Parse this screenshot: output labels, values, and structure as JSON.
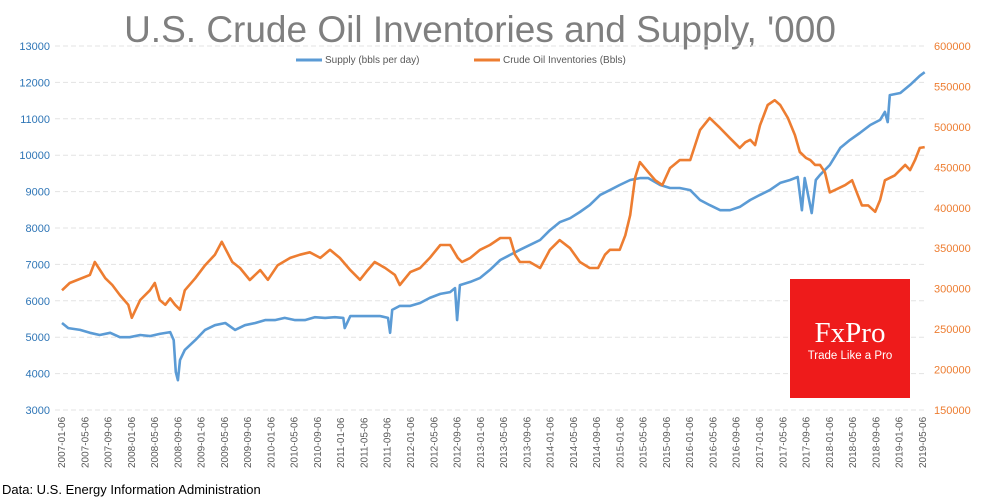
{
  "chart_data": {
    "type": "line",
    "title": "U.S. Crude Oil Inventories and Supply, '000",
    "source": "Data: U.S. Energy Information Administration",
    "x_unit": "year (decimal)",
    "xlim": [
      2007.0,
      2019.36
    ],
    "x_tick_labels": [
      "2007-01-06",
      "2007-05-06",
      "2007-09-06",
      "2008-01-06",
      "2008-05-06",
      "2008-09-06",
      "2009-01-06",
      "2009-05-06",
      "2009-09-06",
      "2010-01-06",
      "2010-05-06",
      "2010-09-06",
      "2011-01-06",
      "2011-05-06",
      "2011-09-06",
      "2012-01-06",
      "2012-05-06",
      "2012-09-06",
      "2013-01-06",
      "2013-05-06",
      "2013-09-06",
      "2014-01-06",
      "2014-05-06",
      "2014-09-06",
      "2015-01-06",
      "2015-05-06",
      "2015-09-06",
      "2016-01-06",
      "2016-05-06",
      "2016-09-06",
      "2017-01-06",
      "2017-05-06",
      "2017-09-06",
      "2018-01-06",
      "2018-05-06",
      "2018-09-06",
      "2019-01-06",
      "2019-05-06"
    ],
    "left_axis": {
      "ylim": [
        3000,
        13000
      ],
      "ticks": [
        "3000",
        "4000",
        "5000",
        "6000",
        "7000",
        "8000",
        "9000",
        "10000",
        "11000",
        "12000",
        "13000"
      ]
    },
    "right_axis": {
      "ylim": [
        150000,
        600000
      ],
      "ticks": [
        "150000",
        "200000",
        "250000",
        "300000",
        "350000",
        "400000",
        "450000",
        "500000",
        "550000",
        "600000"
      ]
    },
    "grid": true,
    "legend_position": "top-center",
    "series": [
      {
        "name": "Supply (bbls per day)",
        "axis": "left",
        "color": "#5b9bd5",
        "points": [
          [
            2007.0,
            5390
          ],
          [
            2007.09,
            5250
          ],
          [
            2007.26,
            5200
          ],
          [
            2007.4,
            5120
          ],
          [
            2007.54,
            5060
          ],
          [
            2007.69,
            5120
          ],
          [
            2007.83,
            5000
          ],
          [
            2007.97,
            5000
          ],
          [
            2008.12,
            5060
          ],
          [
            2008.26,
            5030
          ],
          [
            2008.4,
            5090
          ],
          [
            2008.55,
            5140
          ],
          [
            2008.6,
            4920
          ],
          [
            2008.63,
            4040
          ],
          [
            2008.66,
            3820
          ],
          [
            2008.69,
            4370
          ],
          [
            2008.76,
            4650
          ],
          [
            2008.91,
            4920
          ],
          [
            2009.05,
            5200
          ],
          [
            2009.19,
            5330
          ],
          [
            2009.34,
            5390
          ],
          [
            2009.48,
            5200
          ],
          [
            2009.62,
            5330
          ],
          [
            2009.77,
            5390
          ],
          [
            2009.91,
            5470
          ],
          [
            2010.05,
            5470
          ],
          [
            2010.19,
            5530
          ],
          [
            2010.34,
            5470
          ],
          [
            2010.48,
            5470
          ],
          [
            2010.62,
            5550
          ],
          [
            2010.77,
            5530
          ],
          [
            2010.91,
            5550
          ],
          [
            2011.03,
            5530
          ],
          [
            2011.05,
            5250
          ],
          [
            2011.13,
            5580
          ],
          [
            2011.27,
            5580
          ],
          [
            2011.41,
            5580
          ],
          [
            2011.56,
            5580
          ],
          [
            2011.67,
            5530
          ],
          [
            2011.7,
            5120
          ],
          [
            2011.73,
            5750
          ],
          [
            2011.84,
            5860
          ],
          [
            2011.99,
            5860
          ],
          [
            2012.13,
            5940
          ],
          [
            2012.27,
            6080
          ],
          [
            2012.42,
            6190
          ],
          [
            2012.56,
            6240
          ],
          [
            2012.63,
            6350
          ],
          [
            2012.66,
            5470
          ],
          [
            2012.7,
            6430
          ],
          [
            2012.85,
            6520
          ],
          [
            2012.99,
            6630
          ],
          [
            2013.13,
            6850
          ],
          [
            2013.28,
            7120
          ],
          [
            2013.42,
            7260
          ],
          [
            2013.56,
            7400
          ],
          [
            2013.7,
            7530
          ],
          [
            2013.85,
            7670
          ],
          [
            2013.99,
            7940
          ],
          [
            2014.13,
            8160
          ],
          [
            2014.28,
            8270
          ],
          [
            2014.42,
            8440
          ],
          [
            2014.56,
            8630
          ],
          [
            2014.71,
            8910
          ],
          [
            2014.85,
            9040
          ],
          [
            2014.99,
            9180
          ],
          [
            2015.14,
            9320
          ],
          [
            2015.28,
            9370
          ],
          [
            2015.4,
            9370
          ],
          [
            2015.57,
            9180
          ],
          [
            2015.71,
            9100
          ],
          [
            2015.85,
            9100
          ],
          [
            2016.0,
            9040
          ],
          [
            2016.14,
            8770
          ],
          [
            2016.28,
            8630
          ],
          [
            2016.43,
            8490
          ],
          [
            2016.57,
            8490
          ],
          [
            2016.71,
            8580
          ],
          [
            2016.86,
            8770
          ],
          [
            2017.0,
            8910
          ],
          [
            2017.14,
            9040
          ],
          [
            2017.29,
            9240
          ],
          [
            2017.43,
            9320
          ],
          [
            2017.54,
            9400
          ],
          [
            2017.6,
            8490
          ],
          [
            2017.64,
            9370
          ],
          [
            2017.74,
            8410
          ],
          [
            2017.8,
            9320
          ],
          [
            2017.86,
            9460
          ],
          [
            2018.0,
            9730
          ],
          [
            2018.15,
            10200
          ],
          [
            2018.29,
            10420
          ],
          [
            2018.43,
            10610
          ],
          [
            2018.58,
            10830
          ],
          [
            2018.72,
            10970
          ],
          [
            2018.79,
            11190
          ],
          [
            2018.83,
            10910
          ],
          [
            2018.86,
            11650
          ],
          [
            2019.01,
            11710
          ],
          [
            2019.15,
            11930
          ],
          [
            2019.29,
            12180
          ],
          [
            2019.36,
            12280
          ]
        ]
      },
      {
        "name": "Crude Oil Inventories (Bbls)",
        "axis": "right",
        "color": "#ed7d31",
        "points": [
          [
            2007.0,
            298000
          ],
          [
            2007.11,
            307000
          ],
          [
            2007.4,
            317000
          ],
          [
            2007.47,
            333000
          ],
          [
            2007.62,
            313000
          ],
          [
            2007.72,
            304500
          ],
          [
            2007.83,
            292000
          ],
          [
            2007.95,
            280000
          ],
          [
            2008.0,
            264000
          ],
          [
            2008.12,
            286000
          ],
          [
            2008.26,
            298000
          ],
          [
            2008.33,
            307000
          ],
          [
            2008.4,
            286000
          ],
          [
            2008.48,
            280000
          ],
          [
            2008.55,
            288000
          ],
          [
            2008.62,
            280000
          ],
          [
            2008.69,
            274000
          ],
          [
            2008.76,
            298000
          ],
          [
            2008.91,
            313000
          ],
          [
            2009.05,
            329000
          ],
          [
            2009.19,
            342000
          ],
          [
            2009.29,
            358000
          ],
          [
            2009.44,
            333000
          ],
          [
            2009.55,
            325500
          ],
          [
            2009.69,
            310700
          ],
          [
            2009.84,
            323000
          ],
          [
            2009.95,
            311000
          ],
          [
            2010.09,
            329000
          ],
          [
            2010.27,
            338000
          ],
          [
            2010.41,
            342000
          ],
          [
            2010.55,
            345000
          ],
          [
            2010.7,
            338000
          ],
          [
            2010.84,
            348000
          ],
          [
            2010.98,
            338000
          ],
          [
            2011.13,
            323000
          ],
          [
            2011.27,
            311000
          ],
          [
            2011.38,
            323000
          ],
          [
            2011.48,
            333000
          ],
          [
            2011.63,
            325500
          ],
          [
            2011.77,
            317000
          ],
          [
            2011.84,
            304500
          ],
          [
            2011.99,
            320500
          ],
          [
            2012.13,
            325500
          ],
          [
            2012.27,
            338000
          ],
          [
            2012.42,
            354000
          ],
          [
            2012.56,
            354000
          ],
          [
            2012.67,
            338000
          ],
          [
            2012.73,
            333000
          ],
          [
            2012.85,
            338000
          ],
          [
            2012.99,
            348000
          ],
          [
            2013.13,
            354000
          ],
          [
            2013.28,
            362600
          ],
          [
            2013.42,
            362600
          ],
          [
            2013.49,
            342000
          ],
          [
            2013.56,
            333000
          ],
          [
            2013.7,
            333000
          ],
          [
            2013.85,
            325500
          ],
          [
            2013.99,
            348000
          ],
          [
            2014.13,
            360000
          ],
          [
            2014.28,
            350000
          ],
          [
            2014.42,
            333000
          ],
          [
            2014.56,
            325500
          ],
          [
            2014.68,
            325500
          ],
          [
            2014.78,
            342000
          ],
          [
            2014.85,
            348000
          ],
          [
            2014.99,
            348000
          ],
          [
            2015.07,
            366000
          ],
          [
            2015.14,
            391000
          ],
          [
            2015.21,
            437000
          ],
          [
            2015.28,
            456500
          ],
          [
            2015.4,
            444000
          ],
          [
            2015.5,
            434000
          ],
          [
            2015.6,
            428000
          ],
          [
            2015.71,
            449000
          ],
          [
            2015.85,
            459000
          ],
          [
            2016.0,
            459000
          ],
          [
            2016.07,
            477500
          ],
          [
            2016.14,
            496000
          ],
          [
            2016.28,
            511000
          ],
          [
            2016.43,
            498500
          ],
          [
            2016.57,
            486000
          ],
          [
            2016.71,
            474000
          ],
          [
            2016.79,
            481000
          ],
          [
            2016.86,
            484000
          ],
          [
            2016.93,
            477500
          ],
          [
            2017.0,
            502000
          ],
          [
            2017.11,
            527000
          ],
          [
            2017.21,
            533000
          ],
          [
            2017.29,
            527000
          ],
          [
            2017.4,
            511000
          ],
          [
            2017.5,
            490000
          ],
          [
            2017.57,
            469000
          ],
          [
            2017.66,
            461500
          ],
          [
            2017.72,
            459000
          ],
          [
            2017.79,
            453000
          ],
          [
            2017.86,
            453000
          ],
          [
            2017.93,
            444000
          ],
          [
            2018.0,
            419000
          ],
          [
            2018.12,
            424000
          ],
          [
            2018.22,
            428000
          ],
          [
            2018.32,
            434000
          ],
          [
            2018.4,
            416000
          ],
          [
            2018.46,
            403000
          ],
          [
            2018.55,
            403000
          ],
          [
            2018.65,
            395000
          ],
          [
            2018.72,
            409600
          ],
          [
            2018.79,
            434000
          ],
          [
            2018.93,
            440000
          ],
          [
            2019.08,
            453000
          ],
          [
            2019.15,
            446600
          ],
          [
            2019.22,
            459000
          ],
          [
            2019.29,
            474000
          ],
          [
            2019.36,
            475000
          ]
        ]
      }
    ]
  },
  "logo": {
    "brand": "FxPro",
    "tagline": "Trade Like a Pro",
    "color": "#ee1b1b"
  }
}
